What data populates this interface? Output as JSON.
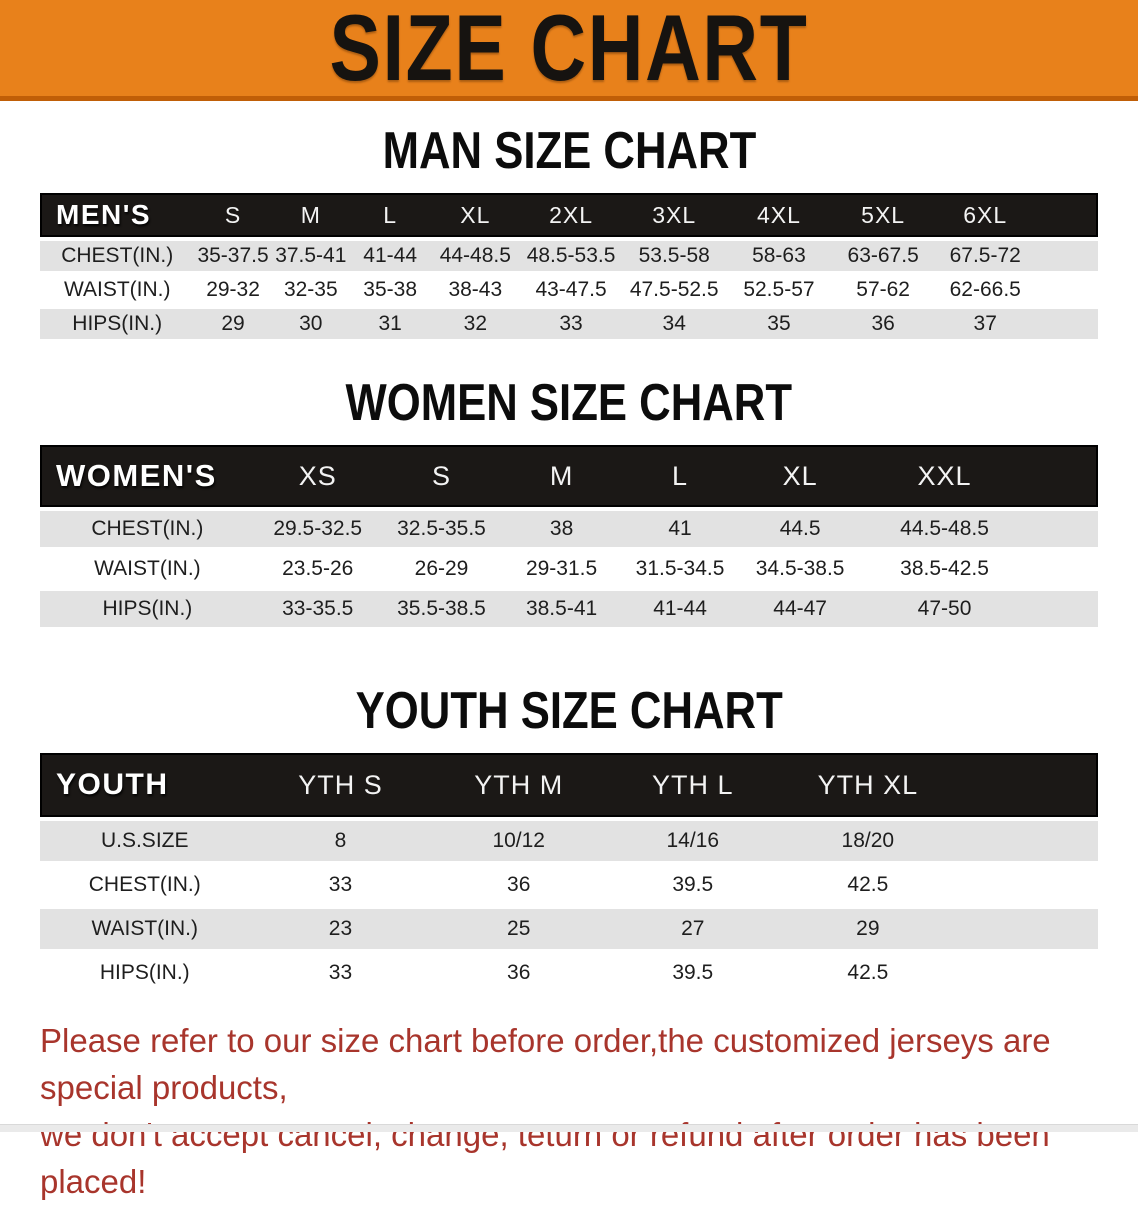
{
  "banner": {
    "title": "SIZE CHART"
  },
  "colors": {
    "banner_bg": "#e8811b",
    "banner_edge": "#c05e07",
    "header_bar": "#1b1816",
    "stripe": "#e2e2e2",
    "footer_red": "#a8352c"
  },
  "sections": [
    {
      "id": "men",
      "title": "MAN SIZE CHART",
      "header_label": "MEN'S",
      "columns": [
        "S",
        "M",
        "L",
        "XL",
        "2XL",
        "3XL",
        "4XL",
        "5XL",
        "6XL"
      ],
      "col_widths": [
        "14.6%",
        "7.3%",
        "7.4%",
        "7.6%",
        "8.5%",
        "9.6%",
        "9.9%",
        "9.9%",
        "9.8%",
        "9.5%",
        "5.9%"
      ],
      "rows": [
        {
          "label": "CHEST(IN.)",
          "values": [
            "35-37.5",
            "37.5-41",
            "41-44",
            "44-48.5",
            "48.5-53.5",
            "53.5-58",
            "58-63",
            "63-67.5",
            "67.5-72"
          ]
        },
        {
          "label": "WAIST(IN.)",
          "values": [
            "29-32",
            "32-35",
            "35-38",
            "38-43",
            "43-47.5",
            "47.5-52.5",
            "52.5-57",
            "57-62",
            "62-66.5"
          ]
        },
        {
          "label": "HIPS(IN.)",
          "values": [
            "29",
            "30",
            "31",
            "32",
            "33",
            "34",
            "35",
            "36",
            "37"
          ]
        }
      ]
    },
    {
      "id": "women",
      "title": "WOMEN SIZE CHART",
      "header_label": "WOMEN'S",
      "columns": [
        "XS",
        "S",
        "M",
        "L",
        "XL",
        "XXL"
      ],
      "col_widths": [
        "20.3%",
        "11.9%",
        "11.5%",
        "11.2%",
        "11.2%",
        "11.5%",
        "15.8%",
        "6.6%"
      ],
      "rows": [
        {
          "label": "CHEST(IN.)",
          "values": [
            "29.5-32.5",
            "32.5-35.5",
            "38",
            "41",
            "44.5",
            "44.5-48.5"
          ]
        },
        {
          "label": "WAIST(IN.)",
          "values": [
            "23.5-26",
            "26-29",
            "29-31.5",
            "31.5-34.5",
            "34.5-38.5",
            "38.5-42.5"
          ]
        },
        {
          "label": "HIPS(IN.)",
          "values": [
            "33-35.5",
            "35.5-38.5",
            "38.5-41",
            "41-44",
            "44-47",
            "47-50"
          ]
        }
      ]
    },
    {
      "id": "youth",
      "title": "YOUTH SIZE CHART",
      "header_label": "YOUTH",
      "columns": [
        "YTH S",
        "YTH M",
        "YTH L",
        "YTH XL"
      ],
      "col_widths": [
        "19.8%",
        "17.2%",
        "16.5%",
        "16.4%",
        "16.7%",
        "13.4%"
      ],
      "rows": [
        {
          "label": "U.S.SIZE",
          "values": [
            "8",
            "10/12",
            "14/16",
            "18/20"
          ]
        },
        {
          "label": "CHEST(IN.)",
          "values": [
            "33",
            "36",
            "39.5",
            "42.5"
          ]
        },
        {
          "label": "WAIST(IN.)",
          "values": [
            "23",
            "25",
            "27",
            "29"
          ]
        },
        {
          "label": "HIPS(IN.)",
          "values": [
            "33",
            "36",
            "39.5",
            "42.5"
          ]
        }
      ]
    }
  ],
  "footer": {
    "line1": "Please refer to our size chart before order,the customized jerseys are special products,",
    "line2": "we don't accept cancel, change, teturn or refund after order has been placed!"
  }
}
